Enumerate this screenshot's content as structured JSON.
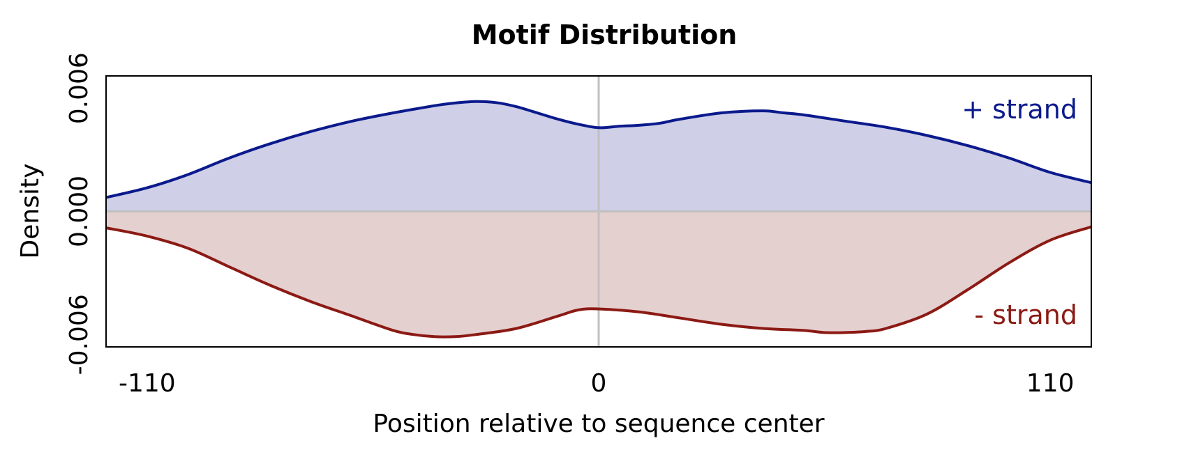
{
  "chart_data": {
    "type": "area",
    "title": "Motif Distribution",
    "xlabel": "Position relative to sequence center",
    "ylabel": "Density",
    "xlim": [
      -120,
      120
    ],
    "ylim": [
      -0.0066,
      0.0066
    ],
    "xticks": [
      -110,
      0,
      110
    ],
    "xtick_labels": [
      "-110",
      "0",
      "110"
    ],
    "yticks": [
      -0.006,
      0.0,
      0.006
    ],
    "ytick_labels": [
      "-0.006",
      "0.000",
      "0.006"
    ],
    "reference_lines": {
      "x": 0,
      "y": 0
    },
    "legend_placement": "inside-right",
    "colors": {
      "plus_line": "#0b1a8c",
      "plus_fill": "#cfcfe8",
      "minus_line": "#8c1a14",
      "minus_fill": "#e5d0d0",
      "reference": "#c0c0c0",
      "frame": "#000000"
    },
    "series": [
      {
        "name": "+ strand",
        "key": "plus",
        "x": [
          -120,
          -110,
          -100,
          -90,
          -80,
          -70,
          -60,
          -50,
          -40,
          -35,
          -30,
          -25,
          -20,
          -15,
          -10,
          -5,
          0,
          5,
          10,
          15,
          20,
          30,
          40,
          45,
          50,
          60,
          70,
          80,
          90,
          100,
          110,
          120
        ],
        "y": [
          0.00068,
          0.00115,
          0.0018,
          0.0026,
          0.0033,
          0.0039,
          0.0044,
          0.0048,
          0.00515,
          0.00528,
          0.00535,
          0.0053,
          0.0051,
          0.0048,
          0.0045,
          0.00425,
          0.00408,
          0.00415,
          0.0042,
          0.0043,
          0.0045,
          0.0048,
          0.0049,
          0.0048,
          0.0047,
          0.0044,
          0.0041,
          0.0037,
          0.0032,
          0.0026,
          0.0019,
          0.0014
        ]
      },
      {
        "name": "- strand",
        "key": "minus",
        "x": [
          -120,
          -110,
          -100,
          -90,
          -80,
          -70,
          -60,
          -50,
          -45,
          -40,
          -35,
          -30,
          -20,
          -10,
          -5,
          0,
          10,
          20,
          30,
          40,
          50,
          55,
          60,
          65,
          70,
          80,
          90,
          100,
          110,
          120
        ],
        "y": [
          -0.0008,
          -0.0012,
          -0.0018,
          -0.0027,
          -0.0036,
          -0.0044,
          -0.0051,
          -0.0058,
          -0.006,
          -0.0061,
          -0.0061,
          -0.006,
          -0.0057,
          -0.0051,
          -0.0048,
          -0.00475,
          -0.0049,
          -0.0052,
          -0.0055,
          -0.0057,
          -0.0058,
          -0.0059,
          -0.0059,
          -0.00585,
          -0.0057,
          -0.005,
          -0.0038,
          -0.0025,
          -0.0014,
          -0.00075
        ]
      }
    ]
  }
}
